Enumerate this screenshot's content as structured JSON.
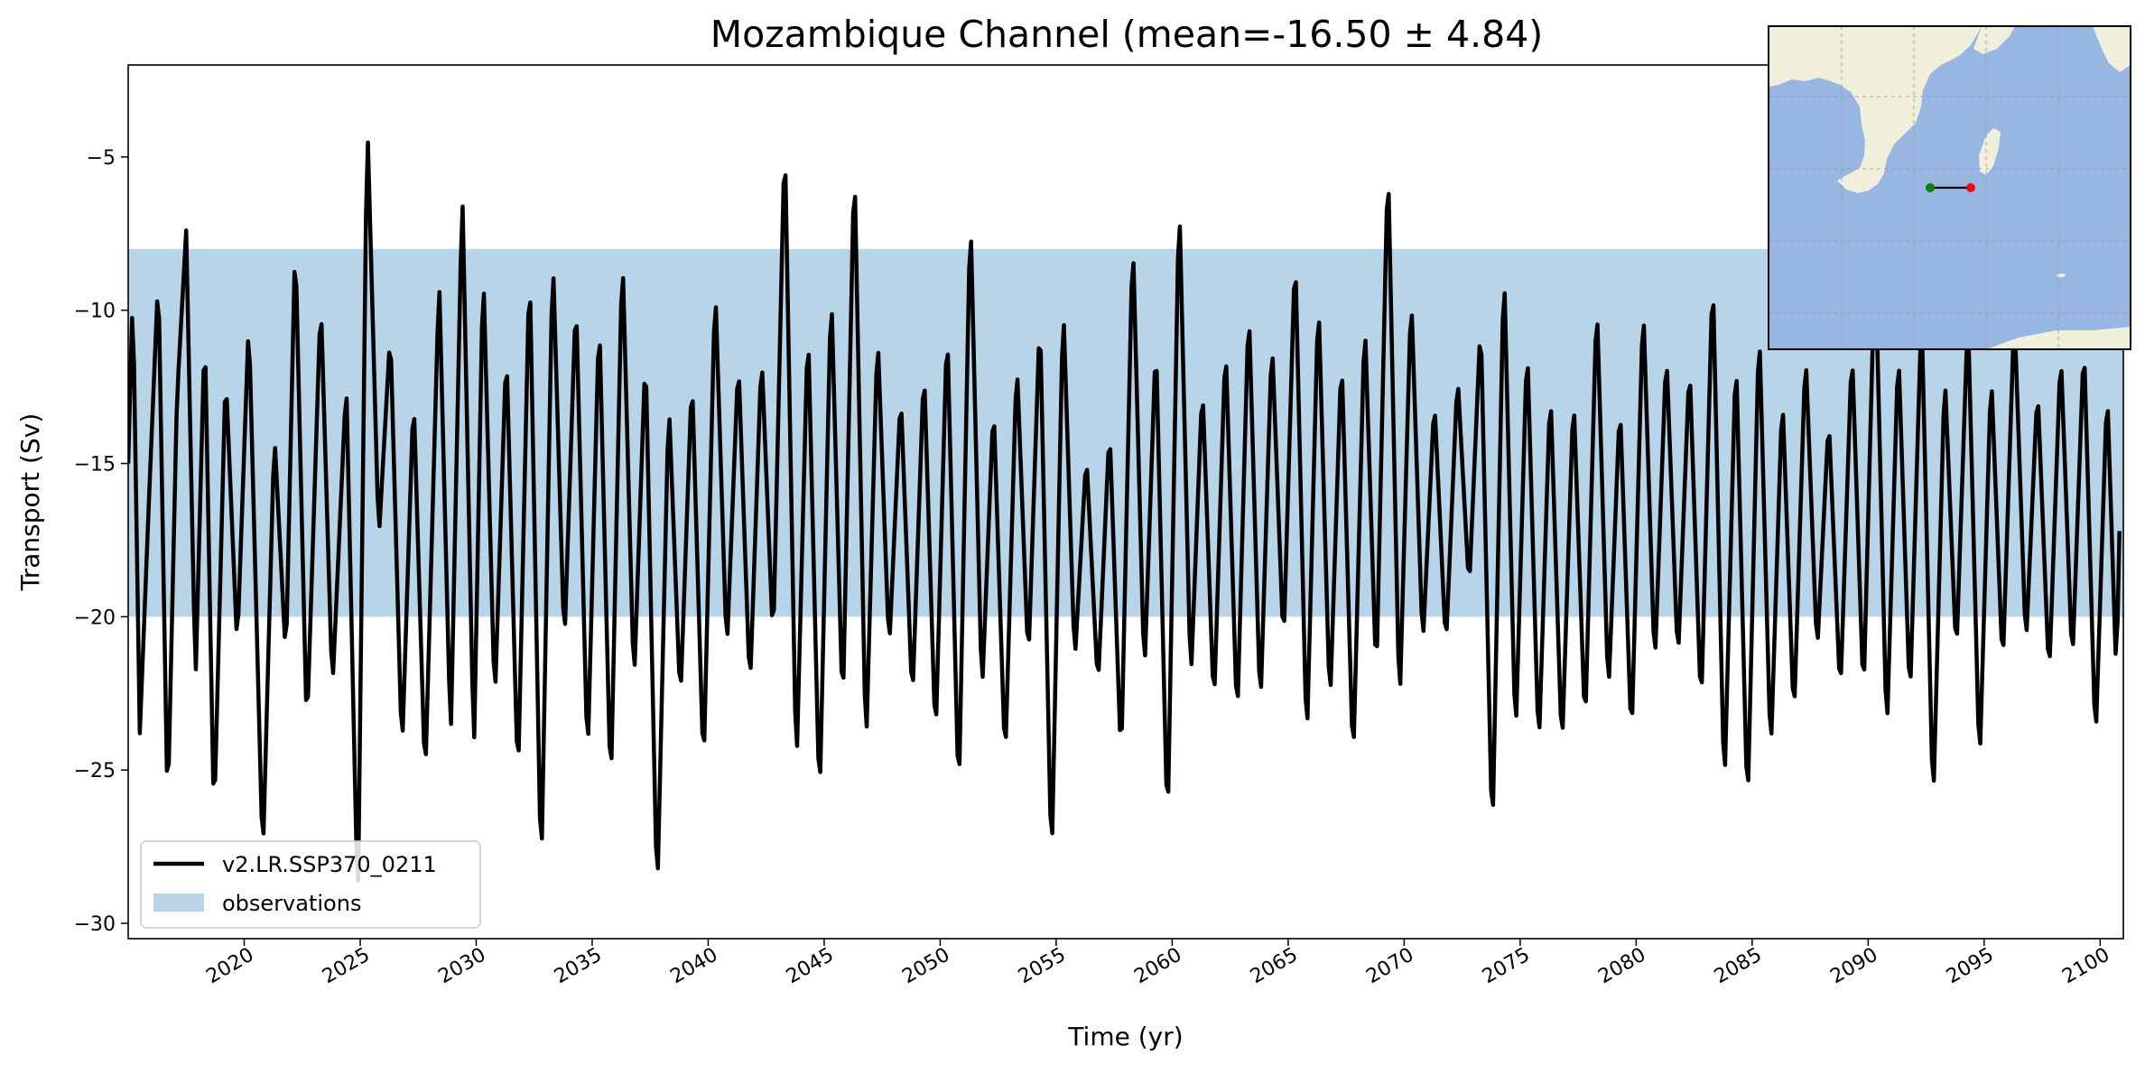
{
  "chart_data": {
    "type": "line",
    "title": "Mozambique Channel (mean=-16.50 ± 4.84)",
    "xlabel": "Time (yr)",
    "ylabel": "Transport (Sv)",
    "xlim": [
      2015,
      2101
    ],
    "ylim": [
      -30.5,
      -2.0
    ],
    "x_ticks": [
      2020,
      2025,
      2030,
      2035,
      2040,
      2045,
      2050,
      2055,
      2060,
      2065,
      2070,
      2075,
      2080,
      2085,
      2090,
      2095,
      2100
    ],
    "y_ticks": [
      -30,
      -25,
      -20,
      -15,
      -10,
      -5
    ],
    "observations_band": {
      "label": "observations",
      "ymin": -20,
      "ymax": -8,
      "color": "#b8d4e8"
    },
    "grid": false,
    "legend_position": "lower-left",
    "series": [
      {
        "name": "v2.LR.SSP370_0211",
        "color": "#000000",
        "sampling": "monthly",
        "x_start": 2015.0,
        "x_end": 2100.9,
        "anchors": [
          [
            2015.0,
            -15.0
          ],
          [
            2015.2,
            -9.3
          ],
          [
            2015.5,
            -23.8
          ],
          [
            2015.9,
            -16.1
          ],
          [
            2016.3,
            -8.8
          ],
          [
            2016.7,
            -26.5
          ],
          [
            2017.1,
            -12.9
          ],
          [
            2017.5,
            -7.4
          ],
          [
            2017.9,
            -22.2
          ],
          [
            2018.3,
            -10.5
          ],
          [
            2018.7,
            -26.8
          ],
          [
            2019.2,
            -12.0
          ],
          [
            2019.7,
            -21.0
          ],
          [
            2020.2,
            -10.3
          ],
          [
            2020.8,
            -28.0
          ],
          [
            2021.3,
            -14.0
          ],
          [
            2021.8,
            -21.4
          ],
          [
            2022.2,
            -7.6
          ],
          [
            2022.7,
            -23.8
          ],
          [
            2023.3,
            -9.6
          ],
          [
            2023.8,
            -22.4
          ],
          [
            2024.4,
            -12.3
          ],
          [
            2024.9,
            -29.7
          ],
          [
            2025.3,
            -3.6
          ],
          [
            2025.8,
            -17.5
          ],
          [
            2026.3,
            -10.7
          ],
          [
            2026.8,
            -24.5
          ],
          [
            2027.3,
            -12.7
          ],
          [
            2027.8,
            -25.4
          ],
          [
            2028.4,
            -8.9
          ],
          [
            2028.9,
            -24.1
          ],
          [
            2029.4,
            -6.0
          ],
          [
            2029.9,
            -24.6
          ],
          [
            2030.3,
            -8.5
          ],
          [
            2030.8,
            -22.9
          ],
          [
            2031.3,
            -11.2
          ],
          [
            2031.8,
            -25.5
          ],
          [
            2032.3,
            -8.4
          ],
          [
            2032.8,
            -28.6
          ],
          [
            2033.3,
            -8.1
          ],
          [
            2033.8,
            -21.0
          ],
          [
            2034.3,
            -9.5
          ],
          [
            2034.8,
            -24.8
          ],
          [
            2035.3,
            -10.1
          ],
          [
            2035.8,
            -25.8
          ],
          [
            2036.3,
            -8.0
          ],
          [
            2036.8,
            -22.3
          ],
          [
            2037.3,
            -11.3
          ],
          [
            2037.8,
            -29.3
          ],
          [
            2038.3,
            -12.9
          ],
          [
            2038.8,
            -22.8
          ],
          [
            2039.3,
            -12.1
          ],
          [
            2039.8,
            -25.1
          ],
          [
            2040.3,
            -9.1
          ],
          [
            2040.8,
            -21.2
          ],
          [
            2041.3,
            -11.6
          ],
          [
            2041.8,
            -22.4
          ],
          [
            2042.3,
            -11.4
          ],
          [
            2042.8,
            -20.9
          ],
          [
            2043.3,
            -4.2
          ],
          [
            2043.8,
            -25.2
          ],
          [
            2044.3,
            -10.4
          ],
          [
            2044.8,
            -26.2
          ],
          [
            2045.3,
            -9.2
          ],
          [
            2045.8,
            -23.2
          ],
          [
            2046.3,
            -5.0
          ],
          [
            2046.8,
            -24.5
          ],
          [
            2047.3,
            -10.7
          ],
          [
            2047.8,
            -21.1
          ],
          [
            2048.3,
            -12.7
          ],
          [
            2048.8,
            -22.8
          ],
          [
            2049.3,
            -11.8
          ],
          [
            2049.8,
            -24.1
          ],
          [
            2050.3,
            -10.4
          ],
          [
            2050.8,
            -26.1
          ],
          [
            2051.3,
            -6.7
          ],
          [
            2051.8,
            -22.6
          ],
          [
            2052.3,
            -13.0
          ],
          [
            2052.8,
            -24.8
          ],
          [
            2053.3,
            -11.6
          ],
          [
            2053.8,
            -21.5
          ],
          [
            2054.3,
            -10.1
          ],
          [
            2054.8,
            -28.3
          ],
          [
            2055.3,
            -9.7
          ],
          [
            2055.8,
            -21.5
          ],
          [
            2056.3,
            -14.7
          ],
          [
            2056.8,
            -22.3
          ],
          [
            2057.3,
            -13.8
          ],
          [
            2057.8,
            -24.8
          ],
          [
            2058.3,
            -7.5
          ],
          [
            2058.8,
            -22.0
          ],
          [
            2059.3,
            -10.9
          ],
          [
            2059.8,
            -27.1
          ],
          [
            2060.3,
            -6.2
          ],
          [
            2060.8,
            -22.2
          ],
          [
            2061.3,
            -12.4
          ],
          [
            2061.8,
            -23.0
          ],
          [
            2062.3,
            -11.0
          ],
          [
            2062.8,
            -23.5
          ],
          [
            2063.3,
            -9.8
          ],
          [
            2063.8,
            -23.1
          ],
          [
            2064.3,
            -10.9
          ],
          [
            2064.8,
            -21.0
          ],
          [
            2065.3,
            -8.0
          ],
          [
            2065.8,
            -24.3
          ],
          [
            2066.3,
            -9.5
          ],
          [
            2066.8,
            -23.0
          ],
          [
            2067.3,
            -11.4
          ],
          [
            2067.8,
            -24.9
          ],
          [
            2068.3,
            -10.2
          ],
          [
            2068.8,
            -22.1
          ],
          [
            2069.3,
            -5.0
          ],
          [
            2069.8,
            -23.1
          ],
          [
            2070.3,
            -9.4
          ],
          [
            2070.8,
            -21.0
          ],
          [
            2071.3,
            -12.9
          ],
          [
            2071.8,
            -21.0
          ],
          [
            2072.3,
            -12.1
          ],
          [
            2072.8,
            -19.1
          ],
          [
            2073.3,
            -10.3
          ],
          [
            2073.8,
            -27.4
          ],
          [
            2074.3,
            -8.4
          ],
          [
            2074.8,
            -24.1
          ],
          [
            2075.3,
            -11.0
          ],
          [
            2075.8,
            -24.4
          ],
          [
            2076.3,
            -12.5
          ],
          [
            2076.8,
            -24.4
          ],
          [
            2077.3,
            -12.7
          ],
          [
            2077.8,
            -23.7
          ],
          [
            2078.3,
            -9.6
          ],
          [
            2078.8,
            -22.6
          ],
          [
            2079.3,
            -13.0
          ],
          [
            2079.8,
            -24.1
          ],
          [
            2080.3,
            -9.7
          ],
          [
            2080.8,
            -21.7
          ],
          [
            2081.3,
            -11.3
          ],
          [
            2081.8,
            -21.5
          ],
          [
            2082.3,
            -11.7
          ],
          [
            2082.8,
            -23.1
          ],
          [
            2083.3,
            -8.7
          ],
          [
            2083.8,
            -25.8
          ],
          [
            2084.3,
            -11.3
          ],
          [
            2084.8,
            -26.4
          ],
          [
            2085.3,
            -10.4
          ],
          [
            2085.8,
            -24.6
          ],
          [
            2086.3,
            -12.7
          ],
          [
            2086.8,
            -23.4
          ],
          [
            2087.3,
            -11.3
          ],
          [
            2087.8,
            -21.2
          ],
          [
            2088.3,
            -13.5
          ],
          [
            2088.8,
            -22.6
          ],
          [
            2089.3,
            -11.2
          ],
          [
            2089.8,
            -22.7
          ],
          [
            2090.3,
            -8.0
          ],
          [
            2090.8,
            -24.0
          ],
          [
            2091.3,
            -11.2
          ],
          [
            2091.8,
            -22.8
          ],
          [
            2092.3,
            -10.0
          ],
          [
            2092.8,
            -26.3
          ],
          [
            2093.3,
            -12.0
          ],
          [
            2093.8,
            -21.3
          ],
          [
            2094.3,
            -10.1
          ],
          [
            2094.8,
            -25.0
          ],
          [
            2095.3,
            -12.0
          ],
          [
            2095.8,
            -21.7
          ],
          [
            2096.3,
            -10.0
          ],
          [
            2096.8,
            -21.0
          ],
          [
            2097.3,
            -12.5
          ],
          [
            2097.8,
            -22.0
          ],
          [
            2098.3,
            -11.3
          ],
          [
            2098.8,
            -21.6
          ],
          [
            2099.3,
            -11.0
          ],
          [
            2099.8,
            -24.2
          ],
          [
            2100.3,
            -12.5
          ],
          [
            2100.7,
            -22.0
          ],
          [
            2100.9,
            -14.8
          ]
        ]
      }
    ],
    "legend": [
      {
        "label": "v2.LR.SSP370_0211",
        "kind": "line",
        "color": "#000000"
      },
      {
        "label": "observations",
        "kind": "patch",
        "color": "#b8d4e8"
      }
    ],
    "inset_map": {
      "position": "top-right",
      "ocean_color": "#98b6e2",
      "land_color": "#efefdc",
      "section_start_marker": "#008000",
      "section_end_marker": "#ff0000",
      "gridlines": "dashed"
    }
  }
}
